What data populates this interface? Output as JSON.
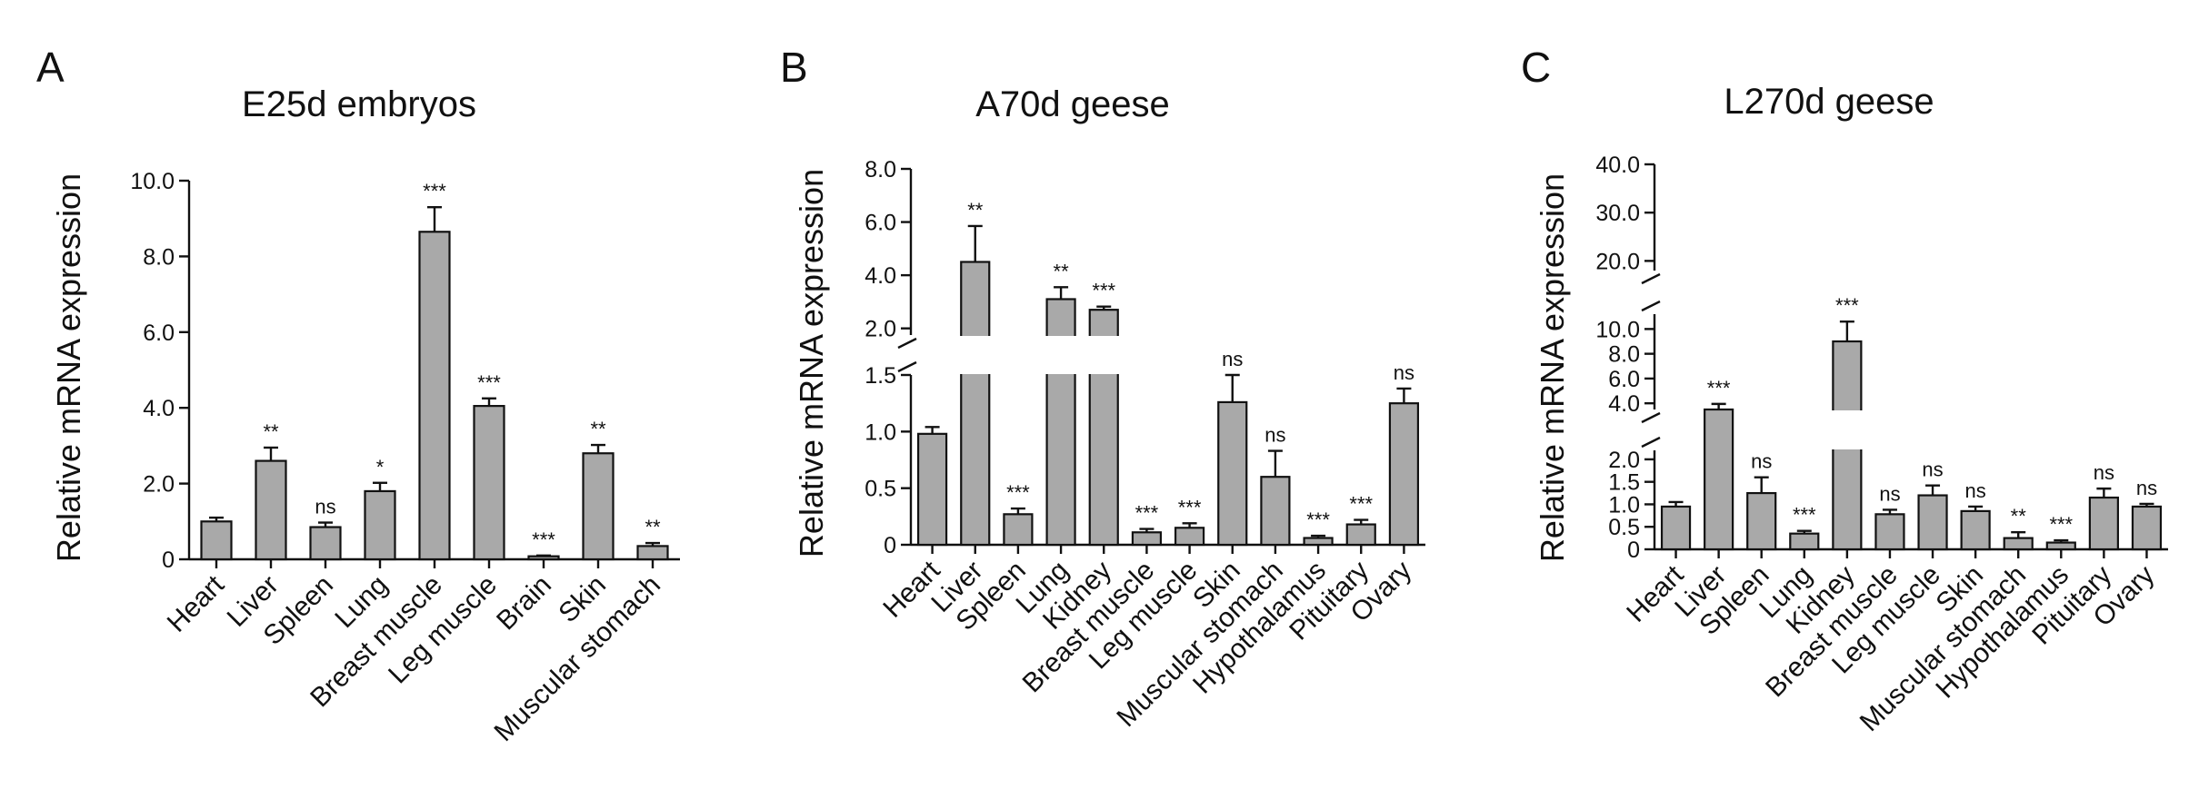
{
  "chart_data": [
    {
      "panel": "A",
      "type": "bar",
      "title": "E25d embryos",
      "ylabel": "Relative mRNA expression",
      "ylim": [
        0,
        10
      ],
      "yticks": [
        "0",
        "2.0",
        "4.0",
        "6.0",
        "8.0",
        "10.0"
      ],
      "categories": [
        "Heart",
        "Liver",
        "Spleen",
        "Lung",
        "Breast muscle",
        "Leg muscle",
        "Brain",
        "Skin",
        "Muscular stomach"
      ],
      "values": [
        1.0,
        2.6,
        0.85,
        1.8,
        8.65,
        4.05,
        0.08,
        2.8,
        0.35
      ],
      "errors": [
        0.1,
        0.35,
        0.12,
        0.22,
        0.65,
        0.2,
        0.02,
        0.22,
        0.08
      ],
      "significance": [
        "",
        "**",
        "ns",
        "*",
        "***",
        "***",
        "***",
        "**",
        "**"
      ]
    },
    {
      "panel": "B",
      "type": "bar",
      "title": "A70d geese",
      "ylabel": "Relative mRNA expression",
      "y_axis_break": [
        1.75,
        2.0
      ],
      "ylim": [
        0,
        8
      ],
      "yticks": [
        "0",
        "0.5",
        "1.0",
        "1.5",
        "2.0",
        "4.0",
        "6.0",
        "8.0"
      ],
      "categories": [
        "Heart",
        "Liver",
        "Spleen",
        "Lung",
        "Kidney",
        "Breast muscle",
        "Leg muscle",
        "Skin",
        "Muscular stomach",
        "Hypothalamus",
        "Pituitary",
        "Ovary"
      ],
      "values": [
        0.98,
        4.5,
        0.27,
        3.1,
        2.7,
        0.11,
        0.15,
        1.26,
        0.6,
        0.06,
        0.18,
        1.25
      ],
      "errors": [
        0.06,
        1.35,
        0.05,
        0.45,
        0.12,
        0.03,
        0.04,
        0.24,
        0.23,
        0.02,
        0.04,
        0.13
      ],
      "significance": [
        "",
        "**",
        "***",
        "**",
        "***",
        "***",
        "***",
        "ns",
        "ns",
        "***",
        "***",
        "ns"
      ]
    },
    {
      "panel": "C",
      "type": "bar",
      "title": "L270d geese",
      "ylabel": "Relative mRNA expression",
      "y_axis_breaks": [
        [
          2.2,
          3.5
        ],
        [
          11.5,
          18
        ]
      ],
      "ylim": [
        0,
        40
      ],
      "yticks": [
        "0",
        "0.5",
        "1.0",
        "1.5",
        "2.0",
        "4.0",
        "6.0",
        "8.0",
        "10.0",
        "20.0",
        "30.0",
        "40.0"
      ],
      "categories": [
        "Heart",
        "Liver",
        "Spleen",
        "Lung",
        "Kidney",
        "Breast muscle",
        "Leg muscle",
        "Skin",
        "Muscular stomach",
        "Hypothalamus",
        "Pituitary",
        "Ovary"
      ],
      "values": [
        0.95,
        3.4,
        1.25,
        0.35,
        9.0,
        0.78,
        1.2,
        0.85,
        0.25,
        0.15,
        1.15,
        0.95
      ],
      "errors": [
        0.1,
        0.55,
        0.35,
        0.06,
        1.6,
        0.1,
        0.22,
        0.1,
        0.13,
        0.05,
        0.2,
        0.06
      ],
      "significance": [
        "",
        "***",
        "ns",
        "***",
        "***",
        "ns",
        "ns",
        "ns",
        "**",
        "***",
        "ns",
        "ns"
      ]
    }
  ]
}
